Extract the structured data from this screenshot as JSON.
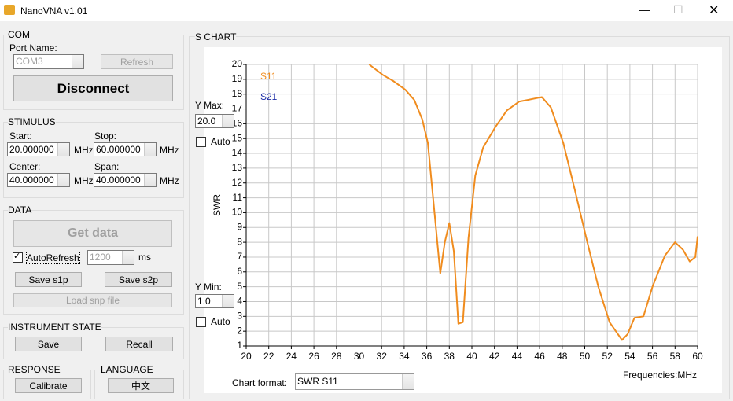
{
  "window": {
    "title": "NanoVNA v1.01"
  },
  "com": {
    "title": "COM",
    "port_label": "Port Name:",
    "port_value": "COM3",
    "refresh": "Refresh",
    "disconnect": "Disconnect"
  },
  "stimulus": {
    "title": "STIMULUS",
    "start_label": "Start:",
    "start_value": "20.000000",
    "stop_label": "Stop:",
    "stop_value": "60.000000",
    "center_label": "Center:",
    "center_value": "40.000000",
    "span_label": "Span:",
    "span_value": "40.000000",
    "unit": "MHz"
  },
  "data": {
    "title": "DATA",
    "get_data": "Get data",
    "auto_refresh": "AutoRefresh",
    "interval": "1200",
    "interval_unit": "ms",
    "save_s1p": "Save s1p",
    "save_s2p": "Save s2p",
    "load": "Load snp file"
  },
  "instrument": {
    "title": "INSTRUMENT STATE",
    "save": "Save",
    "recall": "Recall"
  },
  "response": {
    "title": "RESPONSE",
    "calibrate": "Calibrate"
  },
  "language": {
    "title": "LANGUAGE",
    "button": "中文"
  },
  "schart": {
    "title": "S CHART",
    "ymax_label": "Y Max:",
    "ymax_value": "20.0",
    "ymin_label": "Y Min:",
    "ymin_value": "1.0",
    "auto": "Auto",
    "chart_format_label": "Chart format:",
    "chart_format_value": "SWR S11"
  },
  "chart_data": {
    "type": "line",
    "y_label": "SWR",
    "x_label": "Frequencies:MHz",
    "xlim": [
      20,
      60
    ],
    "ylim": [
      1,
      20
    ],
    "xticks": [
      20,
      22,
      24,
      26,
      28,
      30,
      32,
      34,
      36,
      38,
      40,
      42,
      44,
      46,
      48,
      50,
      52,
      54,
      56,
      58,
      60
    ],
    "yticks": [
      1,
      2,
      3,
      4,
      5,
      6,
      7,
      8,
      9,
      10,
      11,
      12,
      13,
      14,
      15,
      16,
      17,
      18,
      19,
      20
    ],
    "grid": true,
    "x": [
      30.9,
      32.1,
      33.0,
      34.1,
      34.9,
      35.6,
      36.1,
      36.5,
      36.9,
      37.2,
      37.6,
      38.0,
      38.4,
      38.8,
      39.2,
      39.7,
      40.3,
      41.0,
      42.1,
      43.1,
      44.2,
      44.9,
      46.2,
      47.0,
      48.1,
      49.1,
      50.1,
      51.2,
      52.2,
      53.3,
      53.8,
      54.4,
      55.2,
      56.0,
      57.1,
      58.0,
      58.7,
      59.3,
      59.8,
      60.0
    ],
    "series": [
      {
        "name": "S11",
        "color": "#f08c1e",
        "values": [
          20,
          19.3,
          18.9,
          18.3,
          17.6,
          16.3,
          14.7,
          11.5,
          8.3,
          5.9,
          8.0,
          9.3,
          7.4,
          2.5,
          2.6,
          8.3,
          12.5,
          14.4,
          15.8,
          16.9,
          17.5,
          17.6,
          17.8,
          17.1,
          14.7,
          11.6,
          8.4,
          5.0,
          2.6,
          1.4,
          1.8,
          2.9,
          3.0,
          5.0,
          7.1,
          8.0,
          7.5,
          6.7,
          7.0,
          8.4
        ]
      },
      {
        "name": "S21",
        "color": "#1e2fa8",
        "values": [
          null,
          null,
          null,
          null,
          null,
          null,
          null,
          null,
          null,
          null,
          null,
          null,
          null,
          null,
          null,
          null,
          null,
          null,
          null,
          null,
          null,
          null,
          null,
          null,
          null,
          null,
          null,
          null,
          null,
          null,
          null,
          null,
          null,
          null,
          null,
          null,
          null,
          null,
          null,
          null
        ]
      }
    ]
  }
}
